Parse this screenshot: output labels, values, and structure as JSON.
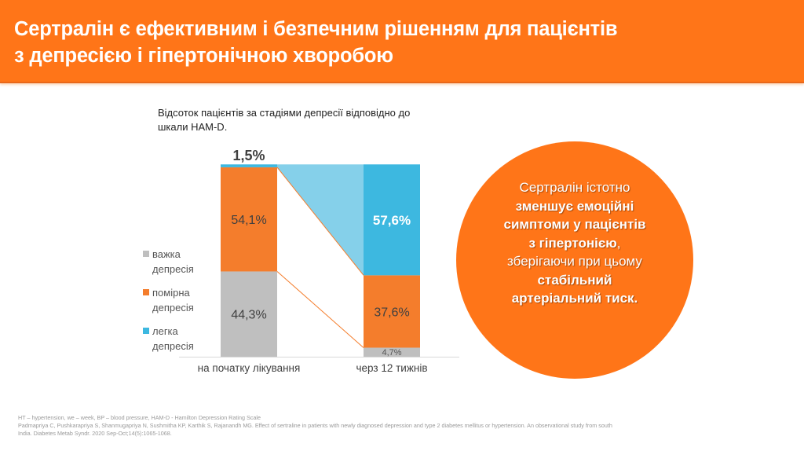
{
  "header": {
    "title_line1": "Сертралін є ефективним і безпечним рішенням для пацієнтів",
    "title_line2": "з депресією і гіпертонічною хворобою"
  },
  "colors": {
    "accent": "#ff7518",
    "severe": "#bfbfbf",
    "moderate": "#f47d2c",
    "mild": "#3db8e0",
    "mild_connector": "#85d0ea"
  },
  "chart_data": {
    "type": "bar",
    "stacked": true,
    "title_line1": "Відсоток пацієнтів за стадіями депресії відповідно до",
    "title_line2": "шкали HAM-D.",
    "categories": [
      "на початку лікування",
      "черз 12 тижнів"
    ],
    "series": [
      {
        "name": "важка депресія",
        "key": "severe",
        "values": [
          44.3,
          4.7
        ],
        "labels": [
          "44,3%",
          "4,7%"
        ]
      },
      {
        "name": "помірна депресія",
        "key": "moderate",
        "values": [
          54.1,
          37.6
        ],
        "labels": [
          "54,1%",
          "37,6%"
        ]
      },
      {
        "name": "легка депресія",
        "key": "mild",
        "values": [
          1.5,
          57.6
        ],
        "labels": [
          "1,5%",
          "57,6%"
        ]
      }
    ],
    "ylim": [
      0,
      100
    ],
    "legend_position": "left",
    "legend": [
      {
        "line1": "важка",
        "line2": "депресія",
        "key": "severe"
      },
      {
        "line1": "помірна",
        "line2": "депресія",
        "key": "moderate"
      },
      {
        "line1": "легка",
        "line2": "депресія",
        "key": "mild"
      }
    ]
  },
  "callout": {
    "line1": "Сертралін істотно",
    "line2": "зменшує емоційні",
    "line3": "симптоми у пацієнтів",
    "line4": "з гіпертонією",
    "line4_suffix": ",",
    "line5": "зберігаючи при цьому",
    "line6": "стабільний",
    "line7": "артеріальний тиск."
  },
  "footnote": {
    "line1": "HT – hypertension, we – week, BP – blood pressure, HAM-D - Hamilton Depression Rating Scale",
    "line2": "Padmapriya C, Pushkarapriya S, Shanmugapriya N, Sushmitha KP, Karthik S, Rajanandh MG. Effect of sertraline in patients with newly diagnosed depression and type 2 diabetes mellitus or hypertension. An observational study from south India. Diabetes Metab Syndr. 2020 Sep-Oct;14(5):1065-1068."
  }
}
